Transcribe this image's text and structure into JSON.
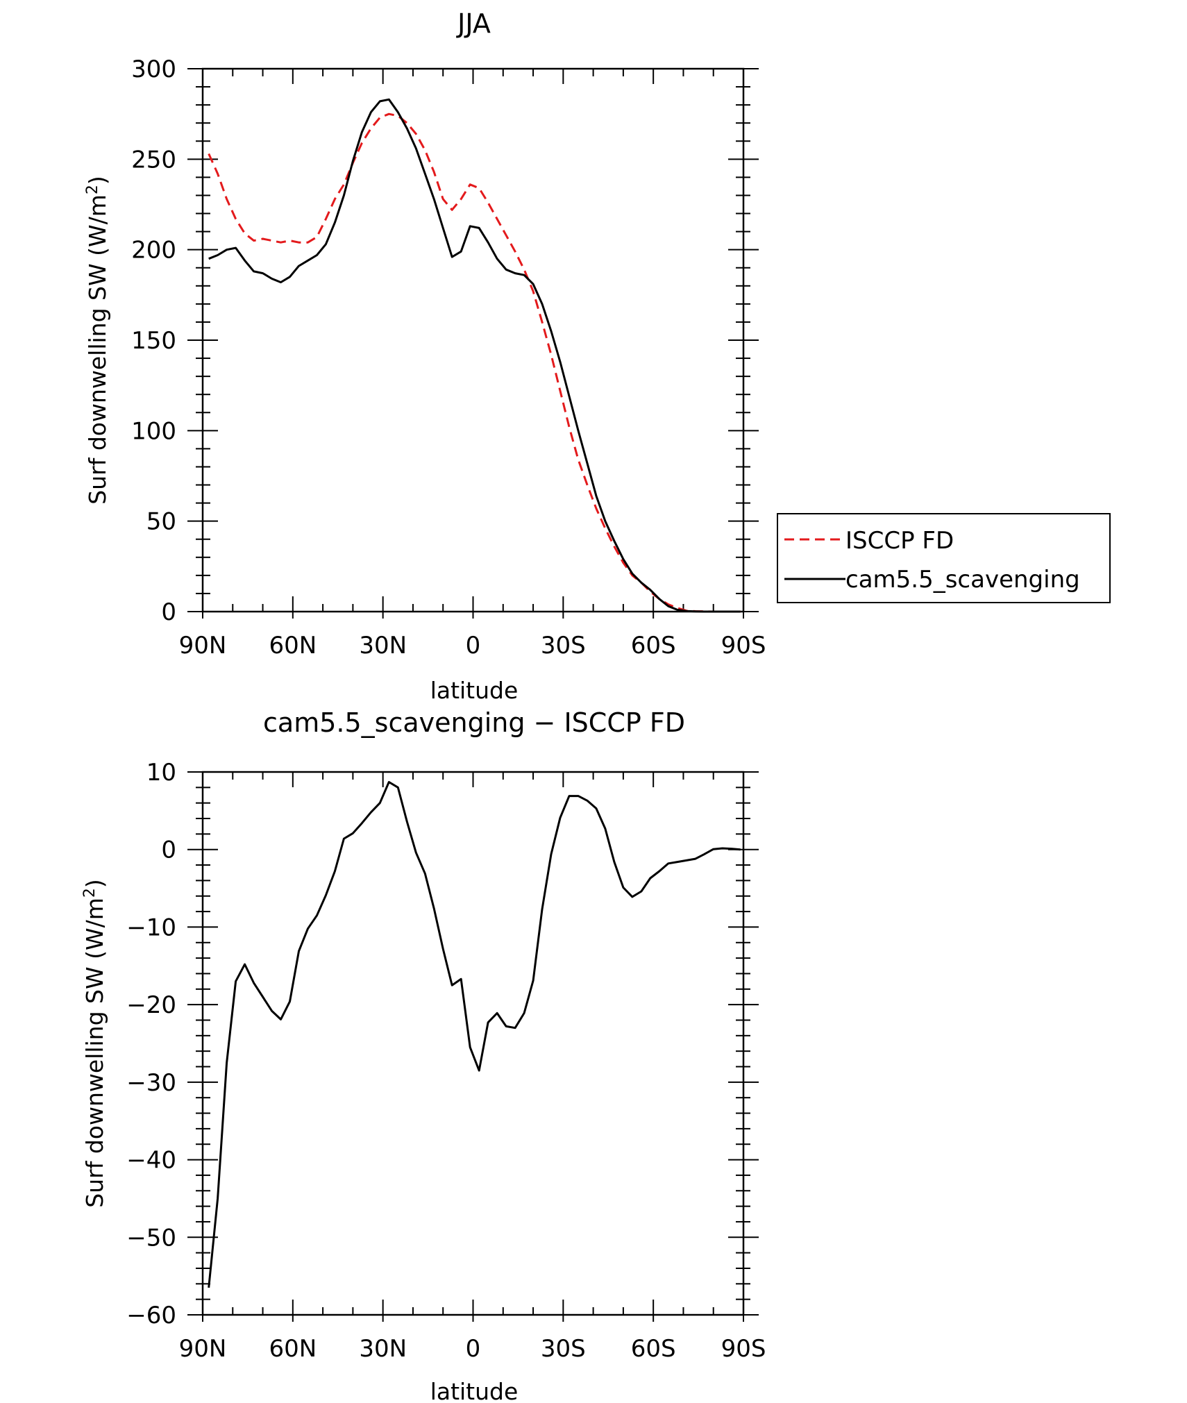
{
  "chart_data": [
    {
      "type": "line",
      "title": "JJA",
      "xlabel": "latitude",
      "ylabel": "Surf downwelling SW (W/m²)",
      "ylabel_parts": {
        "pre": "Surf downwelling SW (W/m",
        "sup": "2",
        "post": ")"
      },
      "xlim": [
        90,
        -90
      ],
      "ylim": [
        0,
        300
      ],
      "xticks": [
        90,
        60,
        30,
        0,
        -30,
        -60,
        -90
      ],
      "xticklabels": [
        "90N",
        "60N",
        "30N",
        "0",
        "30S",
        "60S",
        "90S"
      ],
      "yticks": [
        0,
        50,
        100,
        150,
        200,
        250,
        300
      ],
      "yticklabels": [
        "0",
        "50",
        "100",
        "150",
        "200",
        "250",
        "300"
      ],
      "legend": {
        "position": "right"
      },
      "series": [
        {
          "name": "ISCCP FD",
          "color": "#e31a1c",
          "style": "dashed",
          "x": [
            88,
            85,
            82,
            79,
            76,
            73,
            70,
            67,
            64,
            61,
            58,
            55,
            52,
            49,
            46,
            43,
            40,
            37,
            34,
            31,
            28,
            25,
            22,
            19,
            16,
            13,
            10,
            7,
            4,
            1,
            -2,
            -5,
            -8,
            -11,
            -14,
            -17,
            -20,
            -23,
            -26,
            -29,
            -32,
            -35,
            -38,
            -41,
            -44,
            -47,
            -50,
            -53,
            -56,
            -59,
            -62,
            -65,
            -68,
            -71,
            -74,
            -77,
            -80,
            -83,
            -86,
            -89
          ],
          "y": [
            253,
            242,
            228,
            217,
            209,
            205,
            206,
            205,
            204,
            205,
            204,
            204,
            207,
            217,
            228,
            236,
            248,
            259,
            267,
            273,
            275,
            274,
            270,
            264,
            255,
            243,
            228,
            222,
            228,
            236,
            234,
            226,
            217,
            208,
            199,
            189,
            177,
            160,
            142,
            122,
            102,
            84,
            70,
            57,
            46,
            36,
            27,
            20,
            16,
            11,
            7,
            4,
            2,
            0.5,
            0.2,
            0.1,
            0,
            0,
            0,
            0
          ]
        },
        {
          "name": "cam5.5_scavenging",
          "color": "#000000",
          "style": "solid",
          "x": [
            88,
            85,
            82,
            79,
            76,
            73,
            70,
            67,
            64,
            61,
            58,
            55,
            52,
            49,
            46,
            43,
            40,
            37,
            34,
            31,
            28,
            25,
            22,
            19,
            16,
            13,
            10,
            7,
            4,
            1,
            -2,
            -5,
            -8,
            -11,
            -14,
            -17,
            -20,
            -23,
            -26,
            -29,
            -32,
            -35,
            -38,
            -41,
            -44,
            -47,
            -50,
            -53,
            -56,
            -59,
            -62,
            -65,
            -68,
            -71,
            -74,
            -77,
            -80,
            -83,
            -86,
            -89
          ],
          "y": [
            195,
            197,
            200,
            201,
            194,
            188,
            187,
            184,
            182,
            185,
            191,
            194,
            197,
            203,
            215,
            230,
            249,
            265,
            276,
            282,
            283,
            276,
            267,
            256,
            242,
            228,
            212,
            196,
            199,
            213,
            212,
            204,
            195,
            189,
            187,
            186,
            181,
            170,
            155,
            138,
            119,
            100,
            82,
            64,
            50,
            39,
            29,
            21,
            16,
            12,
            7,
            3,
            1,
            0.3,
            0.1,
            0,
            0,
            0,
            0,
            0
          ]
        }
      ]
    },
    {
      "type": "line",
      "title": "cam5.5_scavenging − ISCCP FD",
      "xlabel": "latitude",
      "ylabel": "Surf downwelling SW (W/m²)",
      "ylabel_parts": {
        "pre": "Surf downwelling SW (W/m",
        "sup": "2",
        "post": ")"
      },
      "xlim": [
        90,
        -90
      ],
      "ylim": [
        -60,
        10
      ],
      "xticks": [
        90,
        60,
        30,
        0,
        -30,
        -60,
        -90
      ],
      "xticklabels": [
        "90N",
        "60N",
        "30N",
        "0",
        "30S",
        "60S",
        "90S"
      ],
      "yticks": [
        10,
        0,
        -10,
        -20,
        -30,
        -40,
        -50,
        -60
      ],
      "yticklabels": [
        "10",
        "0",
        "−10",
        "−20",
        "−30",
        "−40",
        "−50",
        "−60"
      ],
      "series": [
        {
          "color": "#000000",
          "style": "solid",
          "x": [
            88,
            85,
            82,
            79,
            76,
            73,
            70,
            67,
            64,
            61,
            58,
            55,
            52,
            49,
            46,
            43,
            40,
            37,
            34,
            31,
            28,
            25,
            22,
            19,
            16,
            13,
            10,
            7,
            4,
            1,
            -2,
            -5,
            -8,
            -11,
            -14,
            -17,
            -20,
            -23,
            -26,
            -29,
            -32,
            -35,
            -38,
            -41,
            -44,
            -47,
            -50,
            -53,
            -56,
            -59,
            -62,
            -65,
            -68,
            -71,
            -74,
            -77,
            -80,
            -83,
            -86,
            -89
          ],
          "y": [
            -56.5,
            -45,
            -27.5,
            -17,
            -14.8,
            -17.2,
            -19,
            -20.8,
            -21.9,
            -19.6,
            -13.1,
            -10.2,
            -8.5,
            -5.9,
            -2.8,
            1.4,
            2.1,
            3.4,
            4.8,
            6,
            8.7,
            8,
            3.6,
            -0.4,
            -3.1,
            -7.6,
            -12.8,
            -17.5,
            -16.7,
            -25.5,
            -28.5,
            -22.3,
            -21.1,
            -22.8,
            -23,
            -21.1,
            -16.9,
            -7.7,
            -0.6,
            4.1,
            6.9,
            6.9,
            6.3,
            5.3,
            2.7,
            -1.6,
            -4.9,
            -6.1,
            -5.4,
            -3.7,
            -2.8,
            -1.8,
            -1.6,
            -1.4,
            -1.2,
            -0.6,
            0.05,
            0.15,
            0.1,
            0
          ]
        }
      ]
    }
  ]
}
